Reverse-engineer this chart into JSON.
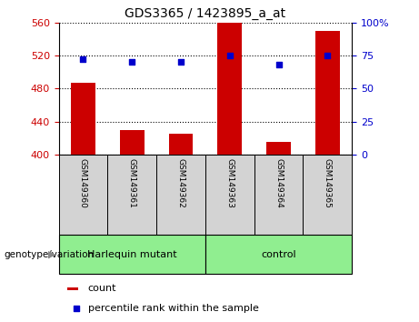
{
  "title": "GDS3365 / 1423895_a_at",
  "samples": [
    "GSM149360",
    "GSM149361",
    "GSM149362",
    "GSM149363",
    "GSM149364",
    "GSM149365"
  ],
  "count_values": [
    487,
    430,
    425,
    560,
    415,
    550
  ],
  "percentile_values": [
    72,
    70,
    70,
    75,
    68,
    75
  ],
  "ylim_left": [
    400,
    560
  ],
  "ylim_right": [
    0,
    100
  ],
  "yticks_left": [
    400,
    440,
    480,
    520,
    560
  ],
  "yticks_right": [
    0,
    25,
    50,
    75,
    100
  ],
  "bar_color": "#cc0000",
  "dot_color": "#0000cc",
  "bar_width": 0.5,
  "groups": [
    {
      "label": "Harlequin mutant",
      "color": "#90ee90"
    },
    {
      "label": "control",
      "color": "#90ee90"
    }
  ],
  "group_label": "genotype/variation",
  "legend_count_label": "count",
  "legend_percentile_label": "percentile rank within the sample",
  "tick_color_left": "#cc0000",
  "tick_color_right": "#0000cc",
  "grid_color": "black",
  "background_xticklabel": "#d3d3d3",
  "background_group": "#90ee90"
}
